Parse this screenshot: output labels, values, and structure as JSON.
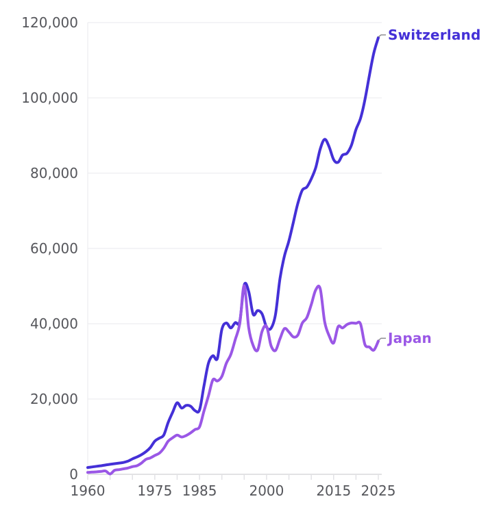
{
  "chart_data": {
    "type": "line",
    "title": "",
    "xlabel": "",
    "ylabel": "",
    "xlim": [
      1960,
      2025
    ],
    "ylim": [
      0,
      120000
    ],
    "grid": "horizontal",
    "legend_position": "end-of-line-labels",
    "x": [
      1960,
      1961,
      1962,
      1963,
      1964,
      1965,
      1966,
      1967,
      1968,
      1969,
      1970,
      1971,
      1972,
      1973,
      1974,
      1975,
      1976,
      1977,
      1978,
      1979,
      1980,
      1981,
      1982,
      1983,
      1984,
      1985,
      1986,
      1987,
      1988,
      1989,
      1990,
      1991,
      1992,
      1993,
      1994,
      1995,
      1996,
      1997,
      1998,
      1999,
      2000,
      2001,
      2002,
      2003,
      2004,
      2005,
      2006,
      2007,
      2008,
      2009,
      2010,
      2011,
      2012,
      2013,
      2014,
      2015,
      2016,
      2017,
      2018,
      2019,
      2020,
      2021,
      2022,
      2023,
      2024,
      2025
    ],
    "series": [
      {
        "name": "Switzerland",
        "color": "#4430d7",
        "values": [
          1800,
          1970,
          2130,
          2280,
          2470,
          2650,
          2810,
          2980,
          3150,
          3500,
          4100,
          4600,
          5200,
          6000,
          7100,
          8800,
          9600,
          10400,
          13800,
          16500,
          19000,
          17600,
          18300,
          18100,
          16900,
          17100,
          23500,
          29500,
          31500,
          30800,
          38500,
          40200,
          38900,
          40300,
          40600,
          50300,
          48600,
          42500,
          43500,
          42600,
          39100,
          38800,
          42500,
          52000,
          58000,
          62000,
          67000,
          72000,
          75500,
          76300,
          78500,
          81500,
          86400,
          89000,
          87000,
          83600,
          82900,
          84800,
          85300,
          87500,
          91600,
          94500,
          99500,
          106000,
          112000,
          116000
        ]
      },
      {
        "name": "Japan",
        "color": "#9a57e6",
        "values": [
          500,
          580,
          660,
          760,
          880,
          100,
          1050,
          1230,
          1450,
          1670,
          2040,
          2270,
          2970,
          3970,
          4350,
          5000,
          5600,
          6900,
          8800,
          9700,
          10400,
          9900,
          10300,
          11000,
          11900,
          12600,
          16800,
          20800,
          25100,
          24800,
          26000,
          29500,
          31800,
          35800,
          40000,
          50100,
          39000,
          34200,
          33000,
          38000,
          39300,
          34200,
          32900,
          36000,
          38700,
          37800,
          36500,
          37000,
          40200,
          41600,
          45100,
          49000,
          49300,
          40500,
          36800,
          34900,
          39200,
          38900,
          39800,
          40200,
          40100,
          40000,
          34500,
          33800,
          33000,
          35400
        ]
      }
    ],
    "yticks": [
      0,
      20000,
      40000,
      60000,
      80000,
      100000,
      120000
    ],
    "ytick_labels": [
      "0",
      "20,000",
      "40,000",
      "60,000",
      "80,000",
      "100,000",
      "120,000"
    ],
    "xtick_labeled_years": [
      1960,
      1975,
      1985,
      2000,
      2015,
      2025
    ],
    "xtick_minor_step_years": 5
  },
  "styles": {
    "background": "#ffffff",
    "gridline_color": "#eaeaec",
    "baseline_color": "#d9d9dc",
    "tick_mark_color": "#e2e2e5",
    "tick_label_color": "#55565b",
    "connector_color": "#8f8f93",
    "switzerland_color": "#4430d7",
    "japan_color": "#9a57e6"
  }
}
